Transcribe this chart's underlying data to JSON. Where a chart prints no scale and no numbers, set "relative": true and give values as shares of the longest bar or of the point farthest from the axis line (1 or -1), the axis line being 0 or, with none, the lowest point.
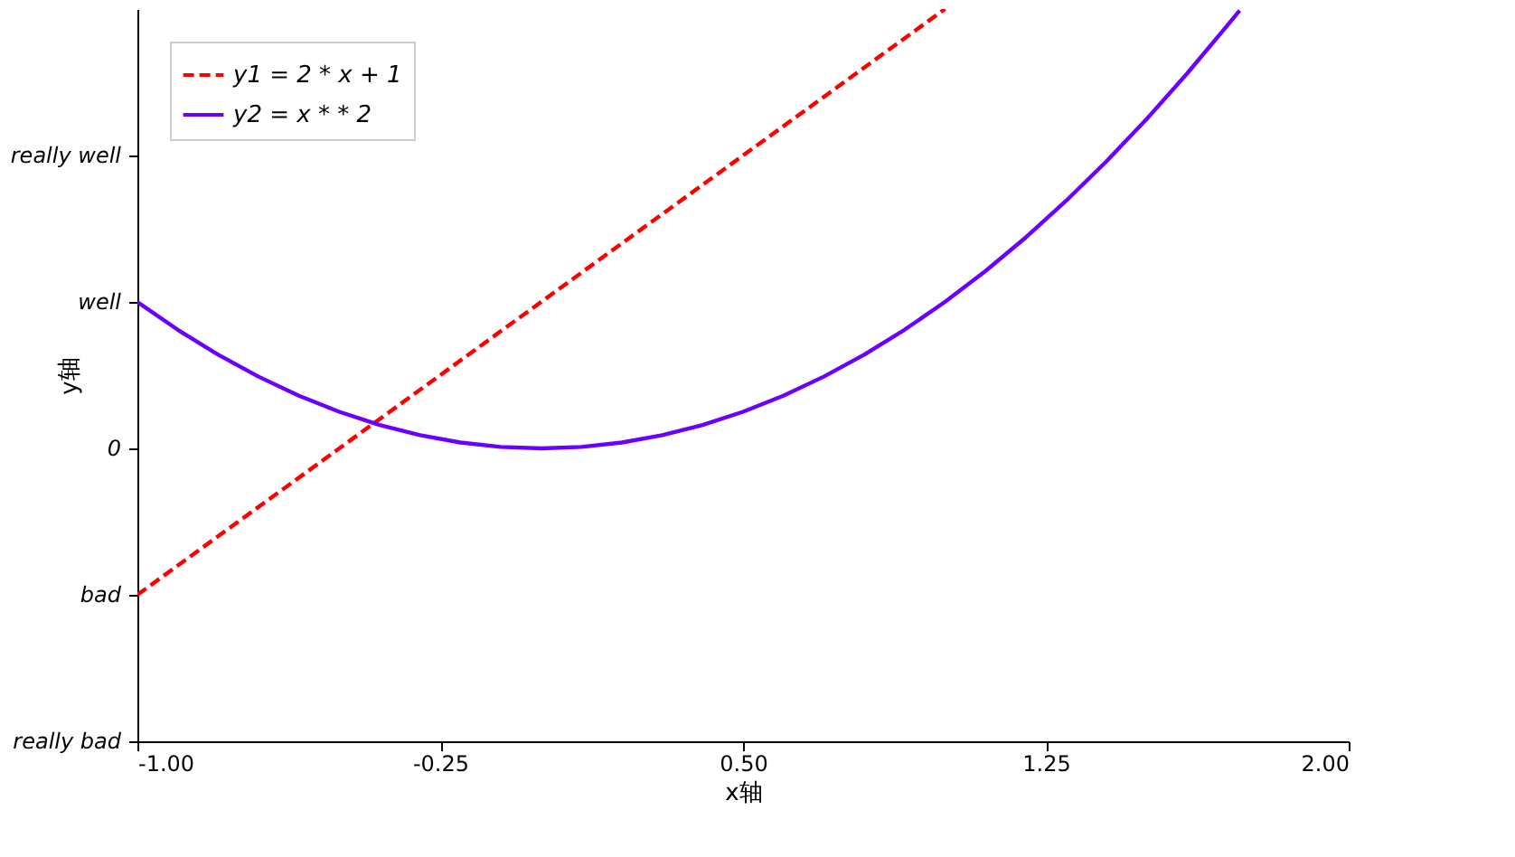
{
  "chart_data": {
    "type": "line",
    "xlabel": "x轴",
    "ylabel": "y轴",
    "relative": true,
    "xlim": [
      -1,
      2
    ],
    "xticks": [
      {
        "value": -1,
        "label": "-1.00"
      },
      {
        "value": -0.25,
        "label": "-0.25"
      },
      {
        "value": 0.5,
        "label": "0.50"
      },
      {
        "value": 1.25,
        "label": "1.25"
      },
      {
        "value": 2,
        "label": "2.00"
      }
    ],
    "annotations": [
      "really bad",
      "bad",
      "0",
      "well",
      "really well"
    ],
    "grid": false,
    "legend": "top left",
    "series": [
      {
        "name": "y1 = 2 * x + 1",
        "color": "#ff0000",
        "line_style": "dashed",
        "x": [
          -1,
          1
        ],
        "values": [
          0.2,
          1
        ]
      },
      {
        "name": "y2 = x * * 2",
        "color": "#6a00ff",
        "line_style": "solid",
        "x": [
          -1,
          -0.9,
          -0.8,
          -0.7,
          -0.6,
          -0.5,
          -0.4,
          -0.3,
          -0.2,
          -0.1,
          0,
          0.1,
          0.2,
          0.3,
          0.4,
          0.5,
          0.6,
          0.7,
          0.8,
          0.9,
          1,
          1.1,
          1.2,
          1.3,
          1.4,
          1.5,
          1.6,
          1.7,
          1.73
        ],
        "values": [
          0.6,
          0.562,
          0.528,
          0.498,
          0.472,
          0.45,
          0.432,
          0.418,
          0.408,
          0.402,
          0.4,
          0.402,
          0.408,
          0.418,
          0.432,
          0.45,
          0.472,
          0.498,
          0.528,
          0.562,
          0.6,
          0.642,
          0.688,
          0.738,
          0.792,
          0.85,
          0.912,
          0.978,
          0.998
        ]
      }
    ]
  }
}
